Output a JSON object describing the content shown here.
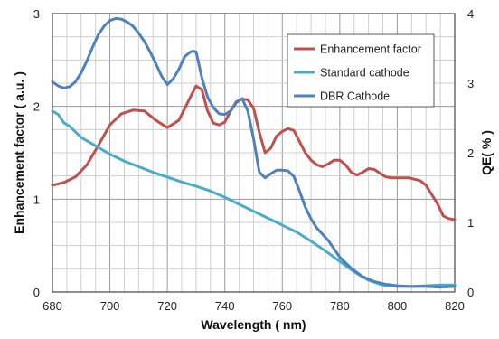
{
  "chart_data": {
    "type": "line",
    "title": "",
    "xlabel": "Wavelength ( nm)",
    "ylabel_left": "Enhancement factor ( a.u. )",
    "ylabel_right": "QE( % )",
    "xlim": [
      680,
      820
    ],
    "ylim_left": [
      0,
      3
    ],
    "ylim_right": [
      0,
      4
    ],
    "x_ticks": [
      680,
      700,
      720,
      740,
      760,
      780,
      800,
      820
    ],
    "y_ticks_left": [
      0,
      1,
      2,
      3
    ],
    "y_ticks_right": [
      0,
      1,
      2,
      3,
      4
    ],
    "grid": true,
    "legend_position": "top-right",
    "series": [
      {
        "name": "Enhancement factor",
        "axis": "left",
        "color": "#c0504d",
        "x": [
          680,
          684,
          688,
          692,
          696,
          700,
          704,
          708,
          712,
          716,
          720,
          724,
          728,
          730,
          732,
          734,
          736,
          738,
          740,
          742,
          744,
          746,
          748,
          750,
          752,
          754,
          756,
          758,
          760,
          762,
          764,
          766,
          768,
          770,
          772,
          774,
          776,
          778,
          780,
          782,
          784,
          786,
          788,
          790,
          792,
          794,
          796,
          798,
          800,
          804,
          808,
          810,
          812,
          814,
          816,
          818,
          820
        ],
        "values": [
          1.15,
          1.18,
          1.24,
          1.37,
          1.58,
          1.8,
          1.92,
          1.96,
          1.95,
          1.85,
          1.77,
          1.85,
          2.1,
          2.22,
          2.18,
          1.95,
          1.82,
          1.8,
          1.83,
          1.95,
          2.05,
          2.08,
          2.07,
          1.98,
          1.72,
          1.5,
          1.55,
          1.68,
          1.73,
          1.76,
          1.74,
          1.62,
          1.5,
          1.42,
          1.37,
          1.35,
          1.38,
          1.42,
          1.42,
          1.37,
          1.29,
          1.26,
          1.29,
          1.33,
          1.32,
          1.28,
          1.24,
          1.23,
          1.23,
          1.23,
          1.2,
          1.15,
          1.05,
          0.95,
          0.82,
          0.79,
          0.78
        ]
      },
      {
        "name": "Standard cathode",
        "axis": "right",
        "color": "#4bacc6",
        "x": [
          680,
          682,
          684,
          686,
          690,
          695,
          700,
          705,
          710,
          715,
          720,
          725,
          730,
          735,
          740,
          745,
          750,
          755,
          760,
          765,
          770,
          775,
          780,
          785,
          790,
          795,
          800,
          805,
          810,
          815,
          820
        ],
        "values": [
          2.6,
          2.55,
          2.43,
          2.38,
          2.22,
          2.1,
          1.98,
          1.88,
          1.8,
          1.72,
          1.65,
          1.58,
          1.52,
          1.45,
          1.36,
          1.26,
          1.16,
          1.06,
          0.96,
          0.86,
          0.73,
          0.59,
          0.44,
          0.29,
          0.17,
          0.1,
          0.08,
          0.08,
          0.09,
          0.1,
          0.1
        ]
      },
      {
        "name": "DBR Cathode",
        "axis": "right",
        "color": "#4f81bd",
        "x": [
          680,
          682,
          684,
          686,
          688,
          690,
          692,
          694,
          696,
          698,
          700,
          702,
          704,
          706,
          708,
          710,
          712,
          714,
          716,
          718,
          720,
          722,
          724,
          726,
          728,
          729,
          730,
          732,
          734,
          736,
          738,
          740,
          742,
          744,
          746,
          748,
          750,
          752,
          754,
          756,
          758,
          760,
          762,
          764,
          766,
          768,
          770,
          772,
          774,
          776,
          778,
          780,
          784,
          788,
          792,
          796,
          800,
          805,
          810,
          815,
          820
        ],
        "values": [
          3.02,
          2.96,
          2.93,
          2.95,
          3.02,
          3.15,
          3.32,
          3.52,
          3.7,
          3.82,
          3.9,
          3.93,
          3.92,
          3.88,
          3.82,
          3.72,
          3.6,
          3.45,
          3.28,
          3.1,
          2.98,
          3.06,
          3.2,
          3.38,
          3.45,
          3.46,
          3.45,
          3.08,
          2.8,
          2.65,
          2.56,
          2.55,
          2.6,
          2.72,
          2.78,
          2.6,
          2.2,
          1.72,
          1.64,
          1.7,
          1.75,
          1.75,
          1.74,
          1.66,
          1.45,
          1.22,
          1.05,
          0.92,
          0.83,
          0.74,
          0.62,
          0.5,
          0.34,
          0.22,
          0.15,
          0.11,
          0.09,
          0.08,
          0.08,
          0.07,
          0.08
        ]
      }
    ]
  }
}
